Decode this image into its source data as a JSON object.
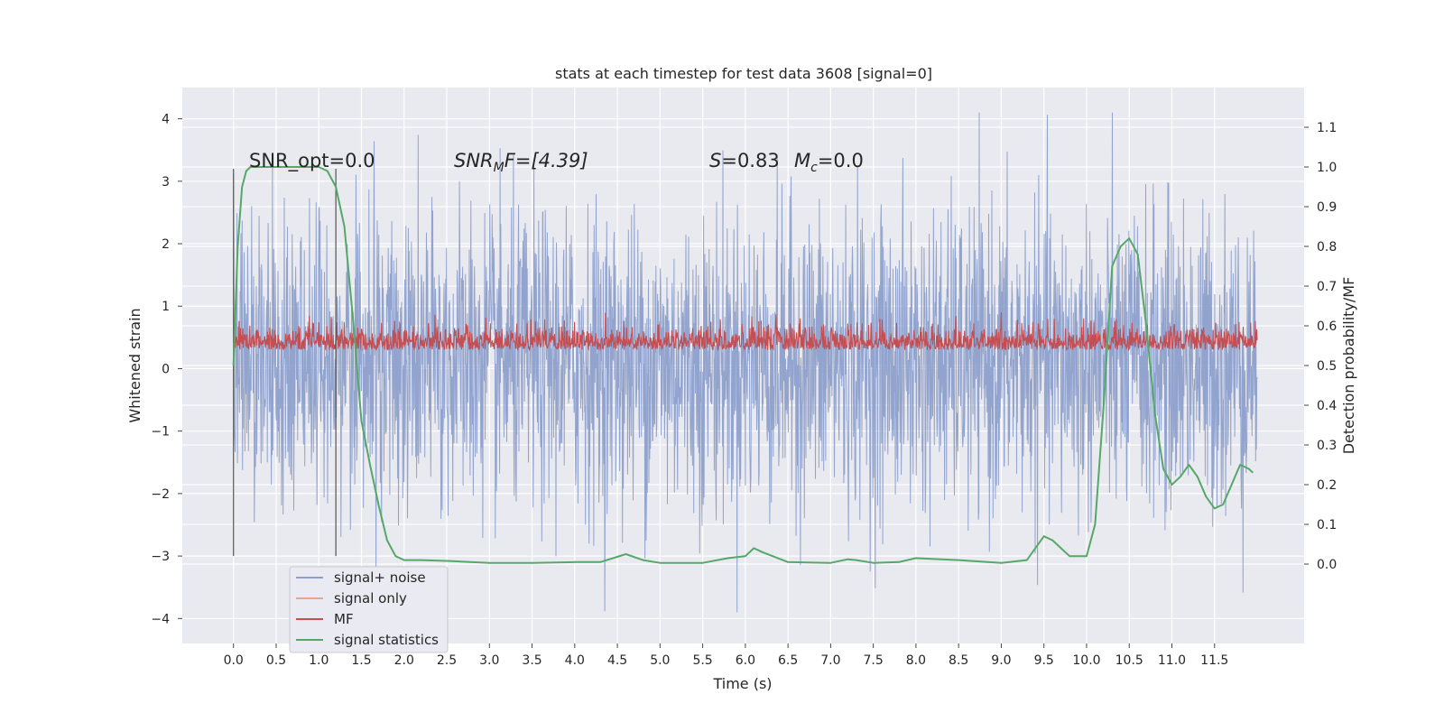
{
  "chart_data": {
    "type": "line",
    "title": "stats at each timestep for test data 3608 [signal=0]",
    "xlabel": "Time (s)",
    "ylabel": "Whitened strain",
    "ylabel_right": "Detection probability/MF",
    "xlim": [
      -0.6,
      12.55
    ],
    "ylim": [
      -4.4,
      4.5
    ],
    "ylim_right": [
      -0.2,
      1.2
    ],
    "x_ticks": [
      0.0,
      0.5,
      1.0,
      1.5,
      2.0,
      2.5,
      3.0,
      3.5,
      4.0,
      4.5,
      5.0,
      5.5,
      6.0,
      6.5,
      7.0,
      7.5,
      8.0,
      8.5,
      9.0,
      9.5,
      10.0,
      10.5,
      11.0,
      11.5
    ],
    "x_tick_labels": [
      "0.0",
      "0.5",
      "1.0",
      "1.5",
      "2.0",
      "2.5",
      "3.0",
      "3.5",
      "4.0",
      "4.5",
      "5.0",
      "5.5",
      "6.0",
      "6.5",
      "7.0",
      "7.5",
      "8.0",
      "8.5",
      "9.0",
      "9.5",
      "10.0",
      "10.5",
      "11.0",
      "11.5"
    ],
    "y_ticks": [
      4,
      3,
      2,
      1,
      0,
      -1,
      -2,
      -3,
      -4
    ],
    "y_tick_labels": [
      "4",
      "3",
      "2",
      "1",
      "0",
      "−1",
      "−2",
      "−3",
      "−4"
    ],
    "y_right_ticks": [
      1.1,
      1.0,
      0.9,
      0.8,
      0.7,
      0.6,
      0.5,
      0.4,
      0.3,
      0.2,
      0.1,
      0.0
    ],
    "y_right_tick_labels": [
      "1.1",
      "1.0",
      "0.9",
      "0.8",
      "0.7",
      "0.6",
      "0.5",
      "0.4",
      "0.3",
      "0.2",
      "0.1",
      "0.0"
    ],
    "grid": true,
    "legend_position": "lower-left",
    "annotations": {
      "snr_opt": "SNR_opt=0.0",
      "snr_mf_prefix": "SNR",
      "snr_mf_sub": "M",
      "snr_mf_suffix": "F=[4.39]",
      "s_prefix": "S",
      "s_value": "=0.83",
      "mc_prefix": "M",
      "mc_sub": "c",
      "mc_value": "=0.0"
    },
    "vertical_lines_x": [
      0.0,
      1.2
    ],
    "series": [
      {
        "name": "signal+ noise",
        "color": "#8da0cb",
        "kind": "noise",
        "x_range": [
          0.0,
          12.0
        ],
        "band_1sigma": [
          -1.1,
          1.3
        ],
        "envelope": [
          -3.9,
          4.1
        ]
      },
      {
        "name": "signal only",
        "color": "#e8a68c",
        "kind": "flat",
        "values": []
      },
      {
        "name": "MF",
        "color": "#c44e52",
        "kind": "band",
        "x_range": [
          0.0,
          12.0
        ],
        "range": [
          0.0,
          0.9
        ],
        "axis": "right_scaled_as_left",
        "values_left_units": [
          0.0,
          0.9
        ]
      },
      {
        "name": "signal statistics",
        "color": "#55a868",
        "kind": "line",
        "axis": "right",
        "x": [
          0.0,
          0.05,
          0.1,
          0.15,
          0.2,
          0.3,
          0.5,
          0.8,
          1.0,
          1.1,
          1.2,
          1.3,
          1.4,
          1.5,
          1.6,
          1.7,
          1.8,
          1.9,
          2.0,
          2.2,
          2.5,
          3.0,
          3.5,
          4.0,
          4.3,
          4.6,
          4.8,
          5.0,
          5.5,
          5.8,
          6.0,
          6.1,
          6.2,
          6.5,
          7.0,
          7.2,
          7.3,
          7.5,
          7.8,
          8.0,
          8.5,
          9.0,
          9.3,
          9.5,
          9.6,
          9.8,
          10.0,
          10.1,
          10.2,
          10.3,
          10.4,
          10.5,
          10.55,
          10.6,
          10.7,
          10.8,
          10.9,
          11.0,
          11.1,
          11.2,
          11.3,
          11.4,
          11.5,
          11.6,
          11.7,
          11.8,
          11.9,
          11.95
        ],
        "y": [
          0.5,
          0.8,
          0.95,
          0.99,
          1.0,
          1.0,
          1.0,
          1.0,
          1.0,
          0.99,
          0.95,
          0.85,
          0.62,
          0.36,
          0.25,
          0.15,
          0.06,
          0.02,
          0.01,
          0.01,
          0.008,
          0.003,
          0.003,
          0.005,
          0.005,
          0.025,
          0.01,
          0.003,
          0.003,
          0.015,
          0.02,
          0.04,
          0.03,
          0.005,
          0.003,
          0.012,
          0.01,
          0.003,
          0.005,
          0.015,
          0.01,
          0.003,
          0.01,
          0.07,
          0.06,
          0.02,
          0.02,
          0.1,
          0.4,
          0.75,
          0.8,
          0.82,
          0.8,
          0.78,
          0.6,
          0.38,
          0.24,
          0.2,
          0.22,
          0.25,
          0.22,
          0.17,
          0.14,
          0.15,
          0.2,
          0.25,
          0.24,
          0.23
        ]
      }
    ]
  }
}
